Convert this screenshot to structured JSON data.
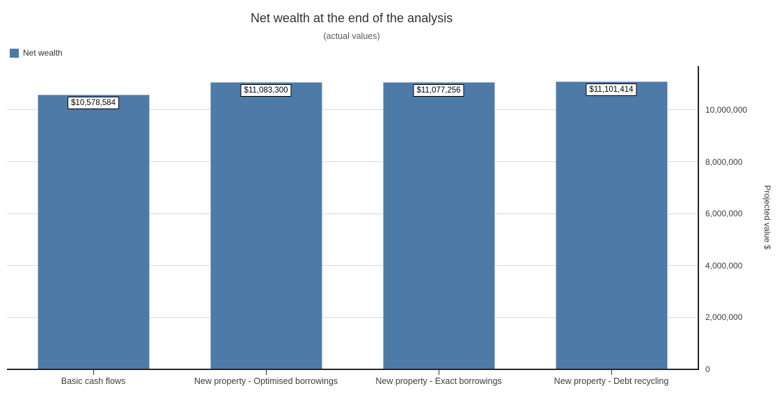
{
  "title": "Net wealth at the end of the analysis",
  "subtitle": "(actual values)",
  "legend": {
    "items": [
      {
        "label": "Net wealth",
        "color": "#4e7aa8"
      }
    ]
  },
  "colors": {
    "bar_fill": "#4e7aa8",
    "bar_border": "#a9bfd7",
    "gridline": "#d9d9d9",
    "axis_line": "#262626",
    "text_dark": "#333333",
    "text_gray": "#595959"
  },
  "chart_data": {
    "type": "bar",
    "title": "Net wealth at the end of the analysis",
    "subtitle": "(actual values)",
    "categories": [
      "Basic cash flows",
      "New property - Optimised borrowings",
      "New property - Exact borrowings",
      "New property - Debt recycling"
    ],
    "series": [
      {
        "name": "Net wealth",
        "values": [
          10578584,
          11083300,
          11077256,
          11101414
        ]
      }
    ],
    "value_labels": [
      "$10,578,584",
      "$11,083,300",
      "$11,077,256",
      "$11,101,414"
    ],
    "xlabel": "",
    "ylabel": "Projected value $",
    "ylim": [
      0,
      11740000
    ],
    "yticks": [
      0,
      2000000,
      4000000,
      6000000,
      8000000,
      10000000
    ],
    "ytick_labels": [
      "0",
      "2,000,000",
      "4,000,000",
      "6,000,000",
      "8,000,000",
      "10,000,000"
    ],
    "grid": "horizontal",
    "legend_position": "top-left",
    "y_axis_side": "right",
    "bar_color": "#4e7aa8",
    "bar_border_color": "#a9bfd7"
  }
}
